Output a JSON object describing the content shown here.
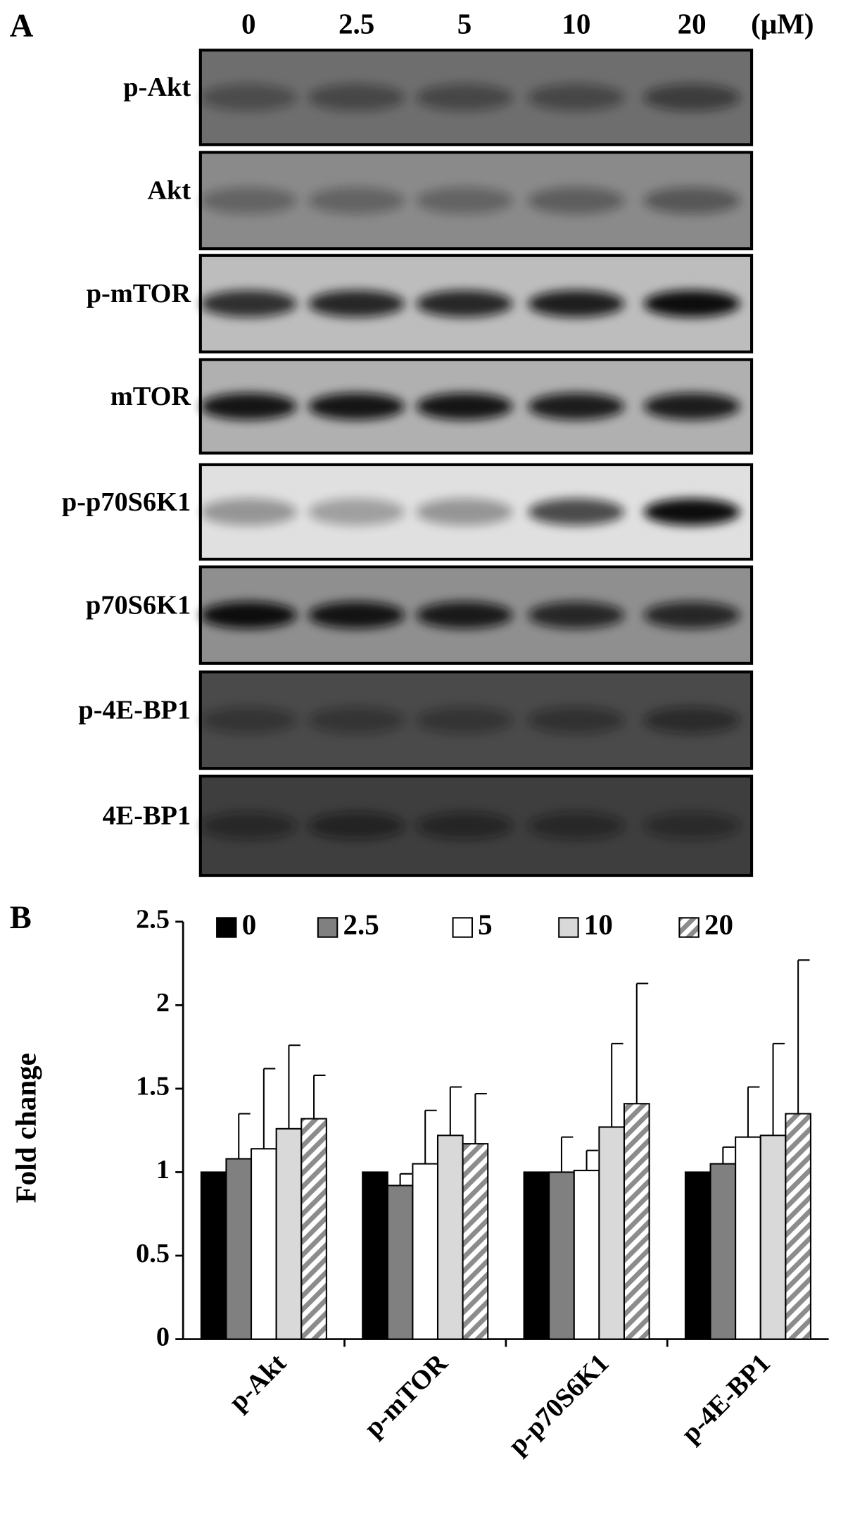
{
  "panel_a": {
    "label": "A",
    "lanes": [
      "0",
      "2.5",
      "5",
      "10",
      "20"
    ],
    "unit": "(μM)",
    "blots": [
      "p-Akt",
      "Akt",
      "p-mTOR",
      "mTOR",
      "p-p70S6K1",
      "p70S6K1",
      "p-4E-BP1",
      "4E-BP1"
    ]
  },
  "chart_data": {
    "type": "bar",
    "panel_label": "B",
    "y_label": "Fold change",
    "categories": [
      "p-Akt",
      "p-mTOR",
      "p-p70S6K1",
      "p-4E-BP1"
    ],
    "series": [
      {
        "name": "0",
        "color": "#000000",
        "values": [
          1.0,
          1.0,
          1.0,
          1.0
        ]
      },
      {
        "name": "2.5",
        "color": "#808080",
        "values": [
          1.08,
          0.92,
          1.0,
          1.05
        ],
        "errors": [
          0.27,
          0.07,
          0.21,
          0.1
        ]
      },
      {
        "name": "5",
        "color": "#ffffff",
        "values": [
          1.14,
          1.05,
          1.01,
          1.21
        ],
        "errors": [
          0.48,
          0.32,
          0.12,
          0.3
        ]
      },
      {
        "name": "10",
        "color": "#d9d9d9",
        "values": [
          1.26,
          1.22,
          1.27,
          1.22
        ],
        "errors": [
          0.5,
          0.29,
          0.5,
          0.55
        ]
      },
      {
        "name": "20",
        "color": "#8c8c8c",
        "hatch": true,
        "values": [
          1.32,
          1.17,
          1.41,
          1.35
        ],
        "errors": [
          0.26,
          0.3,
          0.72,
          0.92
        ]
      }
    ],
    "ylim": [
      0,
      2.5
    ],
    "yticks": [
      0,
      0.5,
      1,
      1.5,
      2,
      2.5
    ],
    "grid": false,
    "legend": "top"
  }
}
